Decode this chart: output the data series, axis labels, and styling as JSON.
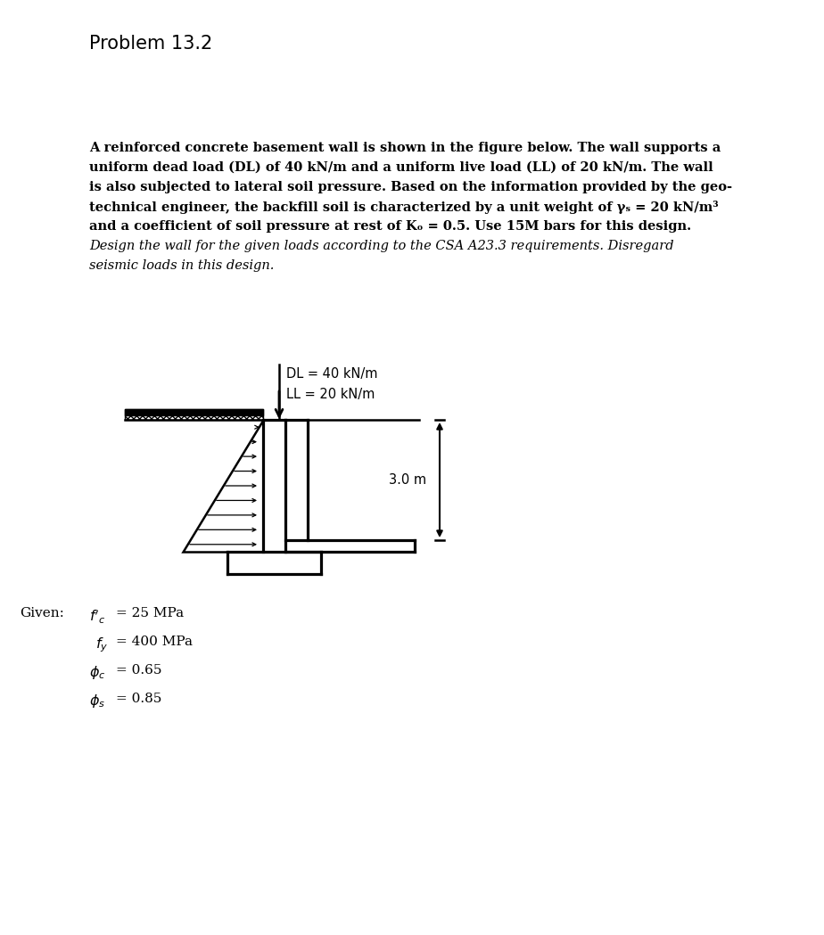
{
  "title": "Problem 13.2",
  "para_line1": "A reinforced concrete basement wall is shown in the figure below. The wall supports a",
  "para_line2": "uniform dead load (DL) of 40 kN/m and a uniform live load (LL) of 20 kN/m. The wall",
  "para_line3": "is also subjected to lateral soil pressure. Based on the information provided by the geo-",
  "para_line4": "technical engineer, the backfill soil is characterized by a unit weight of γₛ = 20 kN/m³",
  "para_line5": "and a coefficient of soil pressure at rest of Kₒ = 0.5. Use 15M bars for this design.",
  "italic_line1": "Design the wall for the given loads according to the CSA A23.3 requirements. Disregard",
  "italic_line2": "seismic loads in this design.",
  "DL_label": "DL = 40 kN/m",
  "LL_label": "LL = 20 kN/m",
  "dim_label": "3.0 m",
  "given_label": "Given:",
  "background_color": "#ffffff",
  "line_color": "#000000",
  "title_fontsize": 15,
  "body_fontsize": 10.5,
  "italic_fontsize": 10.5
}
